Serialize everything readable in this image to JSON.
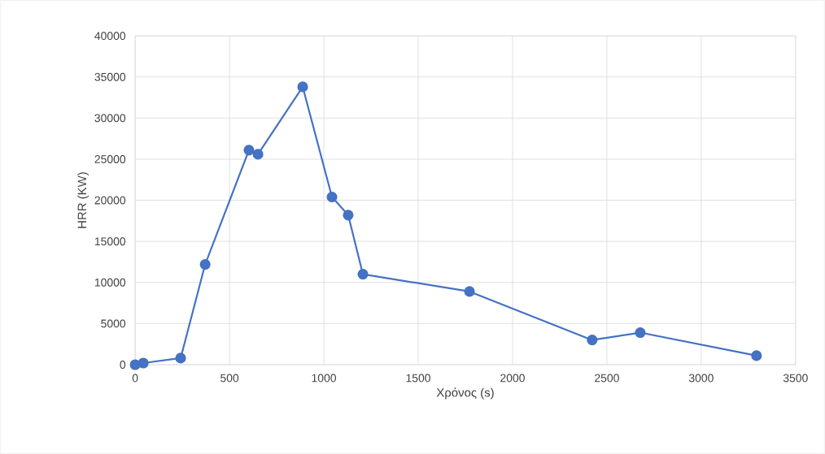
{
  "chart_data": {
    "type": "line",
    "xlabel": "Χρόνος (s)",
    "ylabel": "HRR (KW)",
    "x": [
      0,
      43,
      241,
      371,
      603,
      651,
      888,
      1043,
      1129,
      1207,
      1772,
      2422,
      2677,
      3293
    ],
    "series": [
      {
        "color": "#4472c4",
        "values": [
          0,
          200,
          800,
          12200,
          26100,
          25600,
          33800,
          20400,
          18200,
          11000,
          8900,
          3000,
          3900,
          1100
        ]
      }
    ],
    "xlim": [
      0,
      3500
    ],
    "xticks": [
      0,
      500,
      1000,
      1500,
      2000,
      2500,
      3000,
      3500
    ],
    "ylim": [
      0,
      40000
    ],
    "yticks": [
      0,
      5000,
      10000,
      15000,
      20000,
      25000,
      30000,
      35000,
      40000
    ],
    "grid": true,
    "marker": "circle",
    "line_style": "solid"
  }
}
